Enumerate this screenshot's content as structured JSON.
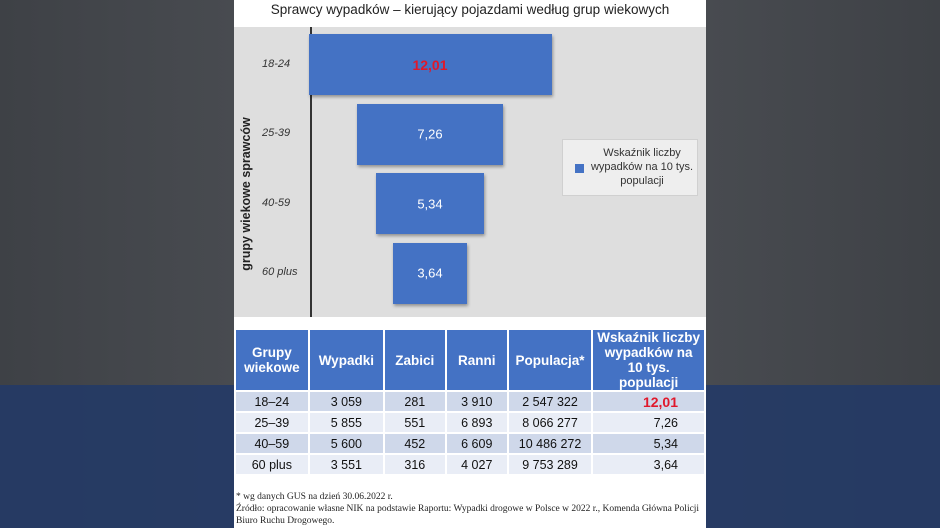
{
  "chart_data": {
    "type": "bar",
    "orientation": "horizontal",
    "title": "Sprawcy wypadków – kierujący pojazdami według grup wiekowych",
    "ylabel": "grupy wiekowe sprawców",
    "categories": [
      "18-24",
      "25-39",
      "40-59",
      "60 plus"
    ],
    "series": [
      {
        "name": "Wskaźnik liczby wypadków na 10 tys. populacji",
        "values": [
          12.01,
          7.26,
          5.34,
          3.64
        ]
      }
    ],
    "value_labels": [
      "12,01",
      "7,26",
      "5,34",
      "3,64"
    ],
    "highlight_index": 0,
    "highlight_color": "#e0182b",
    "bar_color": "#4472c4",
    "legend_position": "right",
    "grid": false
  },
  "table": {
    "headers": [
      "Grupy wiekowe",
      "Wypadki",
      "Zabici",
      "Ranni",
      "Populacja*",
      "Wskaźnik liczby wypadków na 10 tys. populacji"
    ],
    "rows": [
      [
        "18–24",
        "3 059",
        "281",
        "3 910",
        "2 547 322",
        "12,01"
      ],
      [
        "25–39",
        "5 855",
        "551",
        "6 893",
        "8 066 277",
        "7,26"
      ],
      [
        "40–59",
        "5 600",
        "452",
        "6 609",
        "10 486 272",
        "5,34"
      ],
      [
        "60 plus",
        "3 551",
        "316",
        "4 027",
        "9 753 289",
        "3,64"
      ]
    ]
  },
  "notes": {
    "footnote": "* wg danych GUS na dzień 30.06.2022 r.",
    "source": "Źródło: opracowanie własne NIK na podstawie Raportu: Wypadki drogowe w Polsce w 2022 r., Komenda Główna Policji Biuro Ruchu Drogowego."
  },
  "colors": {
    "header": "#4472c4",
    "row_odd": "#cfd8ea",
    "row_even": "#e9edf6",
    "plot_bg": "#dedede"
  }
}
